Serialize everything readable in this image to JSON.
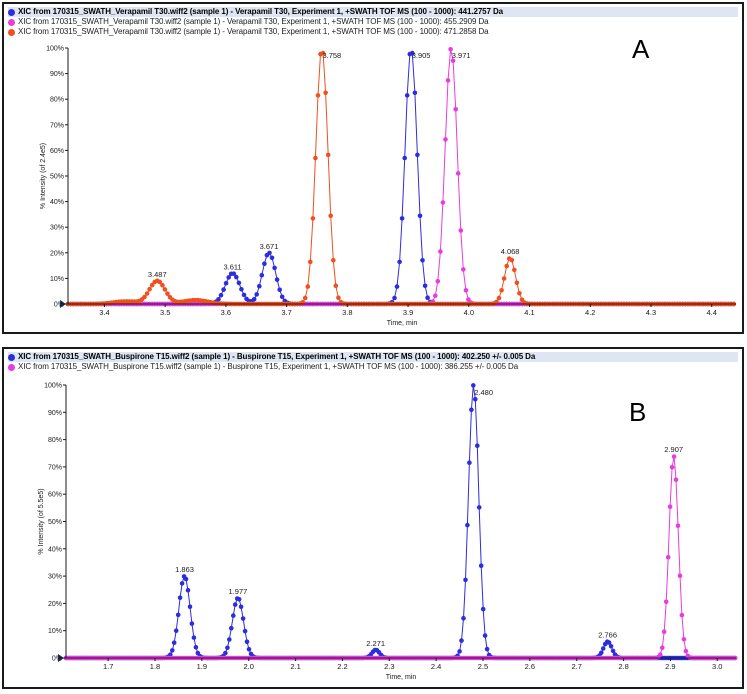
{
  "panels": [
    {
      "id": "A",
      "letter": "A",
      "legend": [
        {
          "text": "XIC from 170315_SWATH_Verapamil T30.wiff2 (sample 1) - Verapamil T30, Experiment 1, +SWATH TOF MS (100 - 1000): 441.2757 Da",
          "color": "#2d2de0"
        },
        {
          "text": "XIC from 170315_SWATH_Verapamil T30.wiff2 (sample 1) - Verapamil T30, Experiment 1, +SWATH TOF MS (100 - 1000): 455.2909 Da",
          "color": "#e83ce0"
        },
        {
          "text": "XIC from 170315_SWATH_Verapamil T30.wiff2 (sample 1) - Verapamil T30, Experiment 1, +SWATH TOF MS (100 - 1000): 471.2858 Da",
          "color": "#f05020"
        }
      ]
    },
    {
      "id": "B",
      "letter": "B",
      "legend": [
        {
          "text": "XIC from 170315_SWATH_Buspirone T15.wiff2 (sample 1) - Buspirone T15, Experiment 1, +SWATH TOF MS (100 - 1000): 402.250 +/- 0.005 Da",
          "color": "#2d2de0"
        },
        {
          "text": "XIC from 170315_SWATH_Buspirone T15.wiff2 (sample 1) - Buspirone T15, Experiment 1, +SWATH TOF MS (100 - 1000): 386.255 +/- 0.005 Da",
          "color": "#e83ce0"
        }
      ]
    }
  ],
  "chart_data": [
    {
      "type": "scatter",
      "xlabel": "Time, min",
      "ylabel": "% Intensity (of 2.4e5)",
      "xlim": [
        3.34,
        4.44
      ],
      "ylim": [
        0,
        100
      ],
      "xticks": [
        "3.4",
        "3.5",
        "3.6",
        "3.7",
        "3.8",
        "3.9",
        "4.0",
        "4.1",
        "4.2",
        "4.3",
        "4.4"
      ],
      "yticks": [
        "0%",
        "10%",
        "20%",
        "30%",
        "40%",
        "50%",
        "60%",
        "70%",
        "80%",
        "90%",
        "100%"
      ],
      "grid": false,
      "series": [
        {
          "color": "#2d2de0",
          "peaks": [
            [
              3.611,
              12,
              0.012
            ],
            [
              3.671,
              20,
              0.011
            ],
            [
              3.905,
              100,
              0.01
            ]
          ]
        },
        {
          "color": "#e83ce0",
          "peaks": [
            [
              3.971,
              100,
              0.01
            ]
          ]
        },
        {
          "color": "#f05020",
          "peaks": [
            [
              3.435,
              1,
              0.02
            ],
            [
              3.487,
              9,
              0.013
            ],
            [
              3.55,
              1.5,
              0.02
            ],
            [
              3.758,
              100,
              0.01
            ],
            [
              4.068,
              18,
              0.009
            ]
          ]
        }
      ],
      "peak_labels": [
        {
          "x": 3.487,
          "y": 9,
          "text": "3.487"
        },
        {
          "x": 3.611,
          "y": 12,
          "text": "3.611"
        },
        {
          "x": 3.671,
          "y": 20,
          "text": "3.671"
        },
        {
          "x": 3.758,
          "y": 100,
          "text": "3.758"
        },
        {
          "x": 3.905,
          "y": 100,
          "text": "3.905"
        },
        {
          "x": 3.971,
          "y": 100,
          "text": "3.971"
        },
        {
          "x": 4.068,
          "y": 18,
          "text": "4.068"
        }
      ]
    },
    {
      "type": "scatter",
      "xlabel": "Time, min",
      "ylabel": "% Intensity (of 5.5e5)",
      "xlim": [
        1.61,
        3.04
      ],
      "ylim": [
        0,
        100
      ],
      "xticks": [
        "1.7",
        "1.8",
        "1.9",
        "2.0",
        "2.1",
        "2.2",
        "2.3",
        "2.4",
        "2.5",
        "2.6",
        "2.7",
        "2.8",
        "2.9",
        "3.0"
      ],
      "yticks": [
        "0%",
        "10%",
        "20%",
        "30%",
        "40%",
        "50%",
        "60%",
        "70%",
        "80%",
        "90%",
        "100%"
      ],
      "grid": false,
      "series": [
        {
          "color": "#2d2de0",
          "peaks": [
            [
              1.863,
              30,
              0.012
            ],
            [
              1.977,
              22,
              0.012
            ],
            [
              2.271,
              3,
              0.008
            ],
            [
              2.48,
              100,
              0.011
            ],
            [
              2.766,
              6,
              0.009
            ]
          ]
        },
        {
          "color": "#e83ce0",
          "peaks": [
            [
              2.907,
              74,
              0.01
            ]
          ]
        }
      ],
      "peak_labels": [
        {
          "x": 1.863,
          "y": 30,
          "text": "1.863"
        },
        {
          "x": 1.977,
          "y": 22,
          "text": "1.977"
        },
        {
          "x": 2.271,
          "y": 3,
          "text": "2.271"
        },
        {
          "x": 2.48,
          "y": 100,
          "text": "2.480"
        },
        {
          "x": 2.766,
          "y": 6,
          "text": "2.766"
        },
        {
          "x": 2.907,
          "y": 74,
          "text": "2.907"
        }
      ]
    }
  ]
}
